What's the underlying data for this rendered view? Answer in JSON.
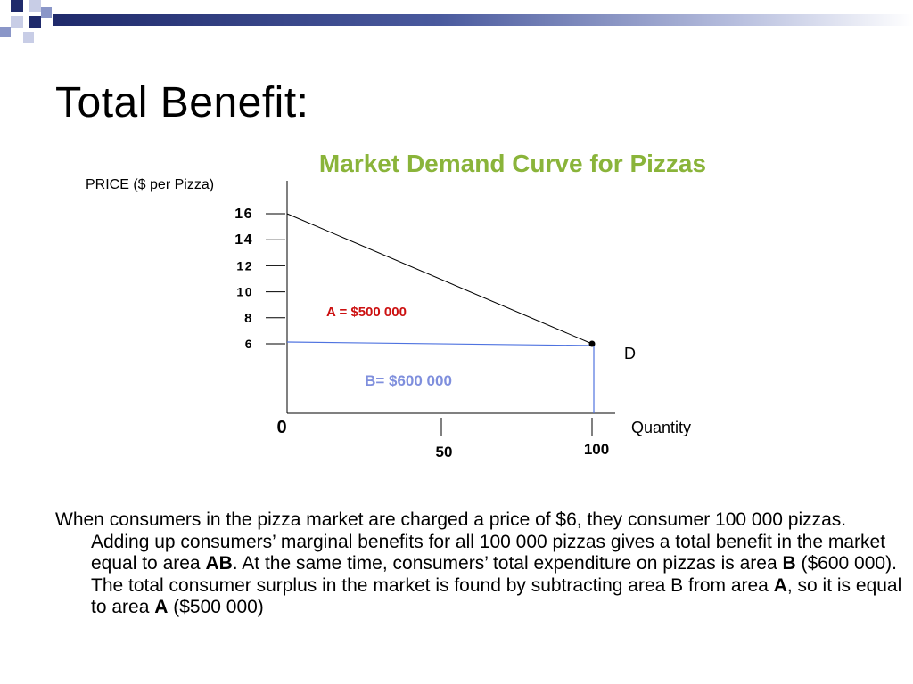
{
  "slide": {
    "title": "Total Benefit:"
  },
  "colors": {
    "title_green": "#8ab43a",
    "area_a_red": "#cc1111",
    "area_b_blue": "#7f8fdd",
    "price_line_blue": "#4f73e0",
    "header_navy": "#1f2a6b"
  },
  "chart_data": {
    "type": "line",
    "title": "Market Demand Curve for Pizzas",
    "ylabel": "PRICE ($ per Pizza)",
    "xlabel": "Quantity",
    "ylim": [
      0,
      16
    ],
    "xlim": [
      0,
      100
    ],
    "y_ticks": [
      "16",
      "14",
      "12",
      "10",
      "8",
      "6"
    ],
    "y_tick_values": [
      16,
      14,
      12,
      10,
      8,
      6
    ],
    "x_ticks": [
      "50",
      "100"
    ],
    "x_tick_values": [
      50,
      100
    ],
    "origin_label": "0",
    "series": [
      {
        "name": "D",
        "x": [
          0,
          100
        ],
        "y": [
          16,
          6
        ]
      }
    ],
    "marked_point": {
      "x": 100,
      "y": 6
    },
    "annotations": {
      "area_a": "A = $500 000",
      "area_b": "B= $600 000"
    },
    "grid": false
  },
  "text": {
    "seg1": "When consumers in the pizza market are charged a price of $6, they consumer 100 000 pizzas.  Adding up consumers’ marginal benefits for all 100 000 pizzas gives a total benefit in the market equal to area ",
    "b1": "AB",
    "seg2": ".  At the same time, consumers’ total expenditure on pizzas is area ",
    "b2": "B",
    "seg3": " ($600 000).  The total consumer surplus in the market is found by subtracting area B from area ",
    "b3": "A",
    "seg4": ", so it is equal to area ",
    "b4": "A",
    "seg5": " ($500 000)"
  }
}
